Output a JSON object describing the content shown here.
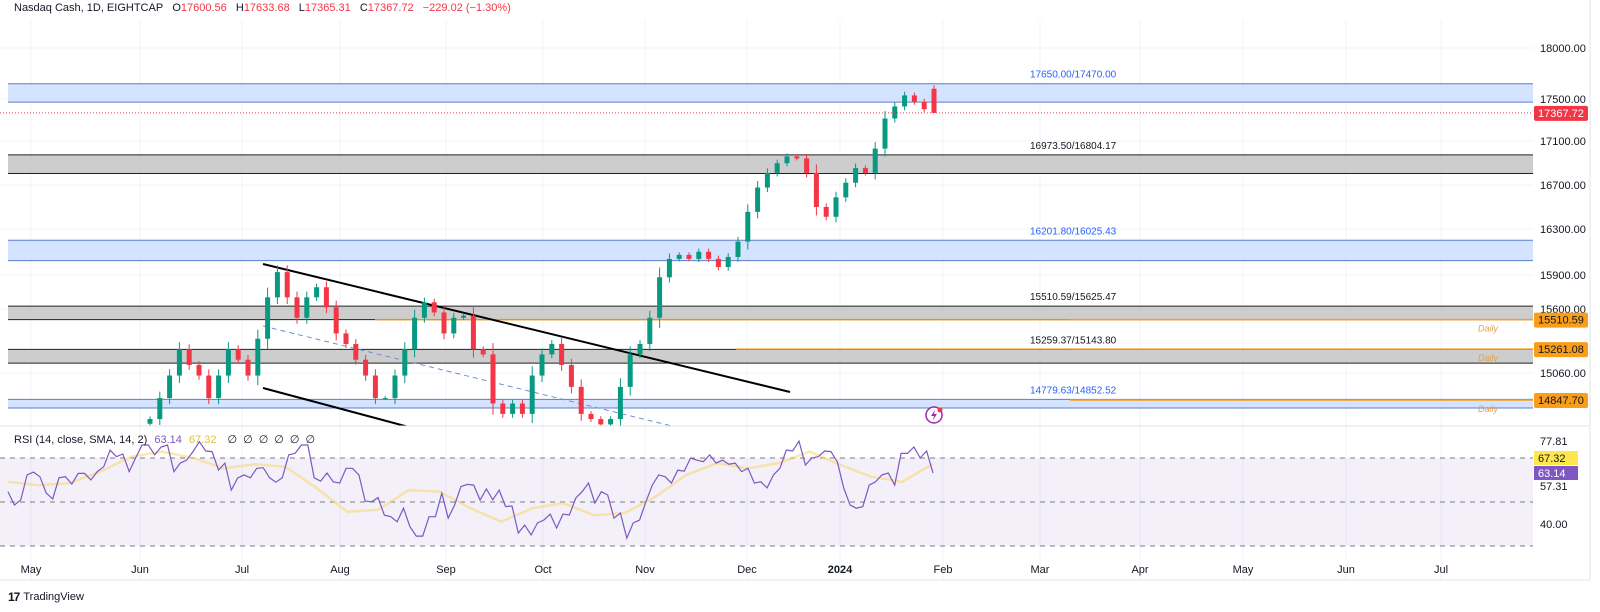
{
  "header": {
    "symbol": "Nasdaq Cash, 1D, EIGHTCAP",
    "open_label": "O",
    "open": "17600.56",
    "high_label": "H",
    "high": "17633.68",
    "low_label": "L",
    "low": "17365.31",
    "close_label": "C",
    "close": "17367.72",
    "change": "−229.02 (−1.30%)"
  },
  "rsi_header": {
    "title": "RSI (14, close, SMA, 14, 2)",
    "rsi_value": "63.14",
    "sma_value": "67.32",
    "extra_values": "∅∅∅∅∅∅"
  },
  "branding": {
    "logo_text": "TradingView"
  },
  "colors": {
    "up": "#089981",
    "down": "#f23645",
    "rsi": "#7e57c2",
    "rsi_sma": "#f5d76e",
    "blue_zone": "#cfe0ff",
    "gray_zone": "#c8c8c8",
    "orange": "#f89e1b",
    "last_price": "#f23645"
  },
  "chart_data": [
    {
      "type": "candlestick",
      "title": "Nasdaq Cash, 1D, EIGHTCAP",
      "y_scale": "price",
      "y_ticks": [
        "18000.00",
        "17500.00",
        "17100.00",
        "16700.00",
        "16300.00",
        "15900.00",
        "15600.00",
        "15060.00"
      ],
      "x_ticks": [
        "May",
        "Jun",
        "Jul",
        "Aug",
        "Sep",
        "Oct",
        "Nov",
        "Dec",
        "2024",
        "Feb",
        "Mar",
        "Apr",
        "May",
        "Jun",
        "Jul"
      ],
      "closes": [
        14686,
        14863,
        15040,
        15261,
        15128,
        15040,
        14863,
        15040,
        15261,
        15172,
        15040,
        15349,
        15703,
        15925,
        15703,
        15526,
        15703,
        15792,
        15615,
        15394,
        15305,
        15172,
        15040,
        14863,
        14863,
        15040,
        15261,
        15526,
        15659,
        15571,
        15394,
        15526,
        15544,
        15261,
        15217,
        14818,
        14730,
        14818,
        14730,
        15040,
        15217,
        15305,
        15128,
        14951,
        14730,
        14686,
        14641,
        14686,
        14951,
        15217,
        15305,
        15526,
        15880,
        16040,
        16075,
        16040,
        16102,
        16040,
        15969,
        16057,
        16190,
        16456,
        16677,
        16810,
        16898,
        16960,
        16942,
        16810,
        16500,
        16411,
        16588,
        16721,
        16854,
        16810,
        17031,
        17314,
        17429,
        17535,
        17473,
        17403,
        17367.72
      ],
      "last_candle": {
        "open": 17600.56,
        "high": 17633.68,
        "low": 17365.31,
        "close": 17367.72
      },
      "last_price": "17367.72",
      "zones": [
        {
          "label": "17650.00/17470.00",
          "top": 17650,
          "bottom": 17470,
          "kind": "blue"
        },
        {
          "label": "16973.50/16804.17",
          "top": 16973.5,
          "bottom": 16804.17,
          "kind": "gray"
        },
        {
          "label": "16201.80/16025.43",
          "top": 16201.8,
          "bottom": 16025.43,
          "kind": "blue"
        },
        {
          "label": "15510.59/15625.47",
          "top": 15625.47,
          "bottom": 15510.59,
          "kind": "gray"
        },
        {
          "label": "15259.37/15143.80",
          "top": 15259.37,
          "bottom": 15143.8,
          "kind": "gray"
        },
        {
          "label": "14779.63/14852.52",
          "top": 14852.52,
          "bottom": 14779.63,
          "kind": "blue"
        }
      ],
      "levels": [
        {
          "price": "15510.59",
          "tag": "Daily"
        },
        {
          "price": "15261.08",
          "tag": "Daily"
        },
        {
          "price": "14847.70",
          "tag": "Daily"
        }
      ]
    },
    {
      "type": "line",
      "title": "RSI (14, close, SMA, 14, 2)",
      "ylim": [
        30,
        80
      ],
      "bands": [
        70,
        50,
        30
      ],
      "y_ticks": [
        "77.81",
        "57.31",
        "40.00"
      ],
      "rsi": [
        54.7,
        48.6,
        51,
        62.3,
        63.6,
        61.5,
        54,
        51.4,
        61,
        61.5,
        58.2,
        63,
        63,
        60,
        63.8,
        66,
        73.6,
        70.6,
        71.8,
        63.8,
        70,
        75.9,
        75.9,
        71.4,
        75,
        75.9,
        63.8,
        67.7,
        69,
        72.9,
        77.4,
        73.2,
        72.9,
        64.5,
        67.7,
        55.4,
        60.9,
        62.3,
        61,
        65.3,
        65.6,
        61,
        59,
        61,
        71.4,
        72.1,
        75.9,
        75.9,
        61,
        59.5,
        63.2,
        59.2,
        58.6,
        65.3,
        65.3,
        62.3,
        50.4,
        50.1,
        52,
        44,
        43.3,
        41,
        47.2,
        38.8,
        34.5,
        34.5,
        43.3,
        43.3,
        54,
        42.7,
        48.6,
        57,
        58,
        57.7,
        50.9,
        55.9,
        51,
        55.4,
        47.9,
        48.2,
        35.9,
        39.5,
        35,
        40.5,
        41.8,
        44.5,
        38.2,
        44.5,
        44.1,
        51.8,
        54.7,
        58.6,
        49.5,
        54.7,
        53.2,
        42.7,
        45,
        33.6,
        40.5,
        41.8,
        50.1,
        57.7,
        62.3,
        61.5,
        58.6,
        64.5,
        64,
        70,
        69,
        68.3,
        71.4,
        67.7,
        69,
        67.2,
        67.7,
        63.8,
        65.3,
        58.6,
        59.2,
        56.4,
        62.3,
        65.3,
        73.6,
        73.2,
        77.7,
        66.8,
        70,
        70.6,
        73.2,
        72.9,
        68.3,
        56.4,
        48.6,
        47.2,
        47.9,
        57.7,
        59.2,
        62.3,
        63.2,
        57.7,
        72.1,
        72.1,
        75,
        70,
        73.2,
        63.14
      ],
      "sma": [
        59.2,
        57.7,
        58.6,
        63.8,
        70.6,
        72.9,
        70,
        65.3,
        67.2,
        66,
        56.4,
        45.6,
        46.4,
        55.4,
        54.7,
        47.2,
        41,
        47.2,
        49.5,
        44,
        45,
        52.4,
        62.3,
        67.7,
        65.3,
        67.7,
        72.9,
        66.8,
        61.5,
        59.2,
        67.32
      ],
      "last_rsi": "63.14",
      "last_sma": "67.32"
    }
  ]
}
